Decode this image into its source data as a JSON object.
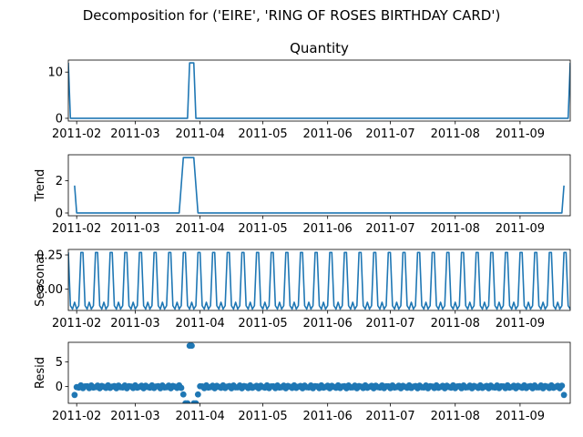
{
  "figure": {
    "suptitle": "Decomposition for ('EIRE', 'RING OF ROSES BIRTHDAY CARD')",
    "line_color": "#1f77b4"
  },
  "chart_data": [
    {
      "type": "line",
      "panel": "observed",
      "title": "Quantity",
      "ylabel": "",
      "xlim": [
        0,
        240
      ],
      "ylim": [
        -0.6,
        12.6
      ],
      "yticks": [
        0,
        10
      ],
      "xtick_labels": [
        "2011-02",
        "2011-03",
        "2011-04",
        "2011-05",
        "2011-06",
        "2011-07",
        "2011-08",
        "2011-09"
      ],
      "xtick_days": [
        4,
        32,
        63,
        93,
        124,
        154,
        185,
        216
      ],
      "points": [
        [
          0,
          12
        ],
        [
          1,
          0
        ],
        [
          57,
          0
        ],
        [
          58,
          12
        ],
        [
          60,
          12
        ],
        [
          61,
          0
        ],
        [
          239,
          0
        ],
        [
          240,
          12
        ]
      ]
    },
    {
      "type": "line",
      "panel": "trend",
      "title": "",
      "ylabel": "Trend",
      "xlim": [
        0,
        240
      ],
      "ylim": [
        -0.17,
        3.6
      ],
      "yticks": [
        0,
        2
      ],
      "xtick_labels": [
        "2011-02",
        "2011-03",
        "2011-04",
        "2011-05",
        "2011-06",
        "2011-07",
        "2011-08",
        "2011-09"
      ],
      "xtick_days": [
        4,
        32,
        63,
        93,
        124,
        154,
        185,
        216
      ],
      "points": [
        [
          3,
          1.7
        ],
        [
          4,
          0
        ],
        [
          53,
          0
        ],
        [
          55,
          3.43
        ],
        [
          60,
          3.43
        ],
        [
          62,
          0
        ],
        [
          236,
          0
        ],
        [
          237,
          1.7
        ]
      ]
    },
    {
      "type": "line",
      "panel": "seasonal",
      "title": "",
      "ylabel": "Seasonal",
      "xlim": [
        0,
        240
      ],
      "ylim": [
        -0.155,
        0.29
      ],
      "yticks": [
        0.25,
        -0.0
      ],
      "ytick_labels": [
        "0.25",
        "0.00"
      ],
      "xtick_labels": [
        "2011-02",
        "2011-03",
        "2011-04",
        "2011-05",
        "2011-06",
        "2011-07",
        "2011-08",
        "2011-09"
      ],
      "xtick_days": [
        4,
        32,
        63,
        93,
        124,
        154,
        185,
        216
      ],
      "period": 7,
      "phase": 0,
      "pattern": [
        0.268,
        -0.12,
        -0.145,
        -0.095,
        -0.145,
        -0.12,
        0.268
      ]
    },
    {
      "type": "scatter",
      "panel": "resid",
      "title": "",
      "ylabel": "Resid",
      "xlim": [
        0,
        240
      ],
      "ylim": [
        -3.4,
        9.0
      ],
      "yticks": [
        0,
        5
      ],
      "xtick_labels": [
        "2011-02",
        "2011-03",
        "2011-04",
        "2011-05",
        "2011-06",
        "2011-07",
        "2011-08",
        "2011-09"
      ],
      "xtick_days": [
        4,
        32,
        63,
        93,
        124,
        154,
        185,
        216
      ],
      "x_start": 3,
      "x_end": 237,
      "typical_range": [
        -0.35,
        0.25
      ],
      "outliers": [
        [
          3,
          -1.7
        ],
        [
          55,
          -1.6
        ],
        [
          56,
          -3.4
        ],
        [
          57,
          -3.4
        ],
        [
          58,
          8.3
        ],
        [
          59,
          8.3
        ],
        [
          60,
          -3.4
        ],
        [
          61,
          -3.4
        ],
        [
          62,
          -1.6
        ],
        [
          237,
          -1.7
        ]
      ]
    }
  ]
}
